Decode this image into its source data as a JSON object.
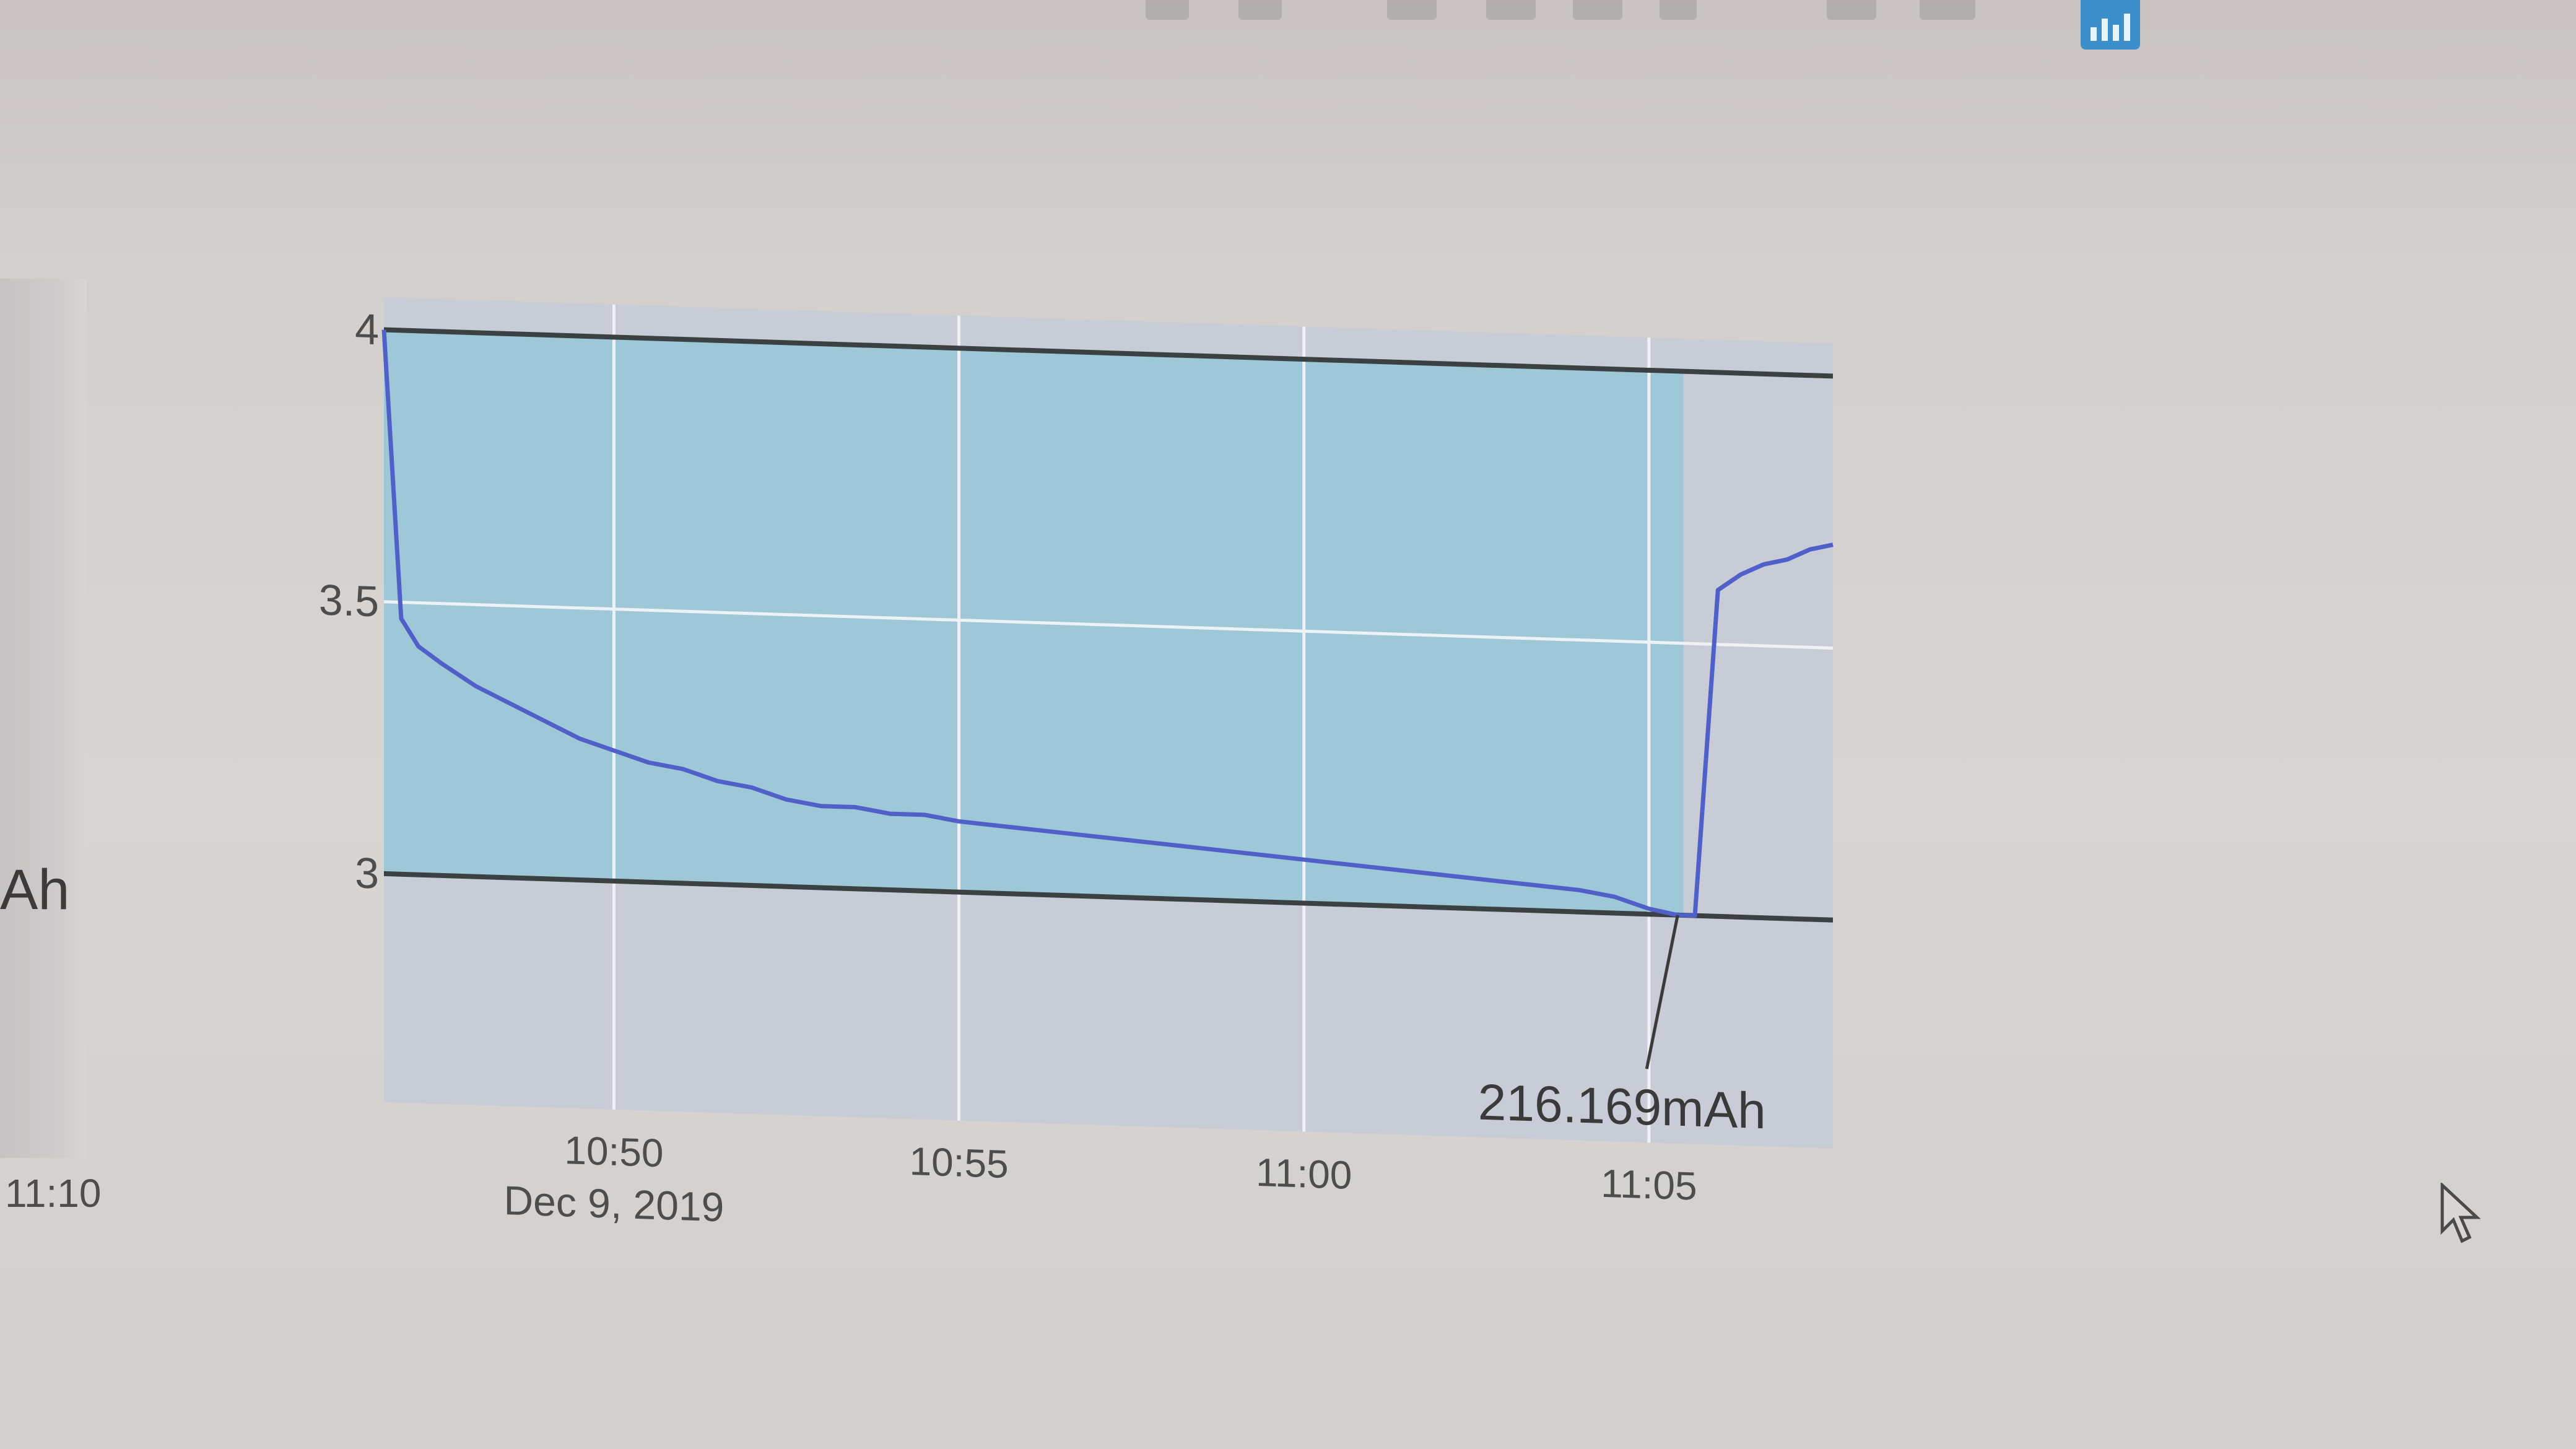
{
  "toolbar": {
    "icons": [
      "camera-icon",
      "save-icon",
      "zoom-icon",
      "home-icon",
      "lasso-icon",
      "autoscale-icon",
      "spikelines-icon",
      "bar-chart-icon"
    ],
    "active_icon": "bar-chart-icon",
    "active_color": "#3d8fc9"
  },
  "left_panel": {
    "unit_fragment": "Ah",
    "tick_label": "11:10"
  },
  "chart_data": {
    "type": "line",
    "x_axis": {
      "type": "time",
      "range": [
        "2019-12-09 10:46:40",
        "2019-12-09 11:07:40"
      ],
      "ticks": [
        {
          "x": "2019-12-09 10:50",
          "label": "10:50"
        },
        {
          "x": "2019-12-09 10:55",
          "label": "10:55"
        },
        {
          "x": "2019-12-09 11:00",
          "label": "11:00"
        },
        {
          "x": "2019-12-09 11:05",
          "label": "11:05"
        }
      ],
      "sub_label": "Dec 9, 2019"
    },
    "y_axis": {
      "range": [
        2.58,
        4.06
      ],
      "ticks": [
        {
          "y": 4,
          "label": "4"
        },
        {
          "y": 3.5,
          "label": "3.5"
        },
        {
          "y": 3,
          "label": "3"
        }
      ]
    },
    "grid": true,
    "threshold_lines": [
      4,
      3
    ],
    "shaded_region": {
      "x_start": "2019-12-09 10:46:40",
      "x_end": "2019-12-09 11:05:30",
      "y_start": 3,
      "y_end": 4,
      "color": "#9cc6d8"
    },
    "series": [
      {
        "color": "#5060c8",
        "x": [
          "2019-12-09 10:46:40",
          "2019-12-09 10:46:55",
          "2019-12-09 10:47:10",
          "2019-12-09 10:47:30",
          "2019-12-09 10:48:00",
          "2019-12-09 10:48:30",
          "2019-12-09 10:49:00",
          "2019-12-09 10:49:30",
          "2019-12-09 10:50:00",
          "2019-12-09 10:50:30",
          "2019-12-09 10:51:00",
          "2019-12-09 10:51:30",
          "2019-12-09 10:52:00",
          "2019-12-09 10:52:30",
          "2019-12-09 10:53:00",
          "2019-12-09 10:53:30",
          "2019-12-09 10:54:00",
          "2019-12-09 10:54:30",
          "2019-12-09 10:55:00",
          "2019-12-09 10:56:00",
          "2019-12-09 10:57:00",
          "2019-12-09 10:58:00",
          "2019-12-09 10:59:00",
          "2019-12-09 11:00:00",
          "2019-12-09 11:01:00",
          "2019-12-09 11:02:00",
          "2019-12-09 11:03:00",
          "2019-12-09 11:04:00",
          "2019-12-09 11:04:30",
          "2019-12-09 11:05:00",
          "2019-12-09 11:05:25",
          "2019-12-09 11:05:40",
          "2019-12-09 11:05:50",
          "2019-12-09 11:06:00",
          "2019-12-09 11:06:20",
          "2019-12-09 11:06:40",
          "2019-12-09 11:07:00",
          "2019-12-09 11:07:20",
          "2019-12-09 11:07:40"
        ],
        "y": [
          4.0,
          3.47,
          3.42,
          3.39,
          3.35,
          3.32,
          3.29,
          3.26,
          3.24,
          3.22,
          3.21,
          3.19,
          3.18,
          3.16,
          3.15,
          3.15,
          3.14,
          3.14,
          3.13,
          3.12,
          3.11,
          3.1,
          3.09,
          3.08,
          3.07,
          3.06,
          3.05,
          3.04,
          3.03,
          3.01,
          3.0,
          3.0,
          3.3,
          3.6,
          3.63,
          3.65,
          3.66,
          3.68,
          3.69
        ]
      }
    ],
    "annotations": [
      {
        "x": "2019-12-09 11:05:25",
        "y": 3.0,
        "text": "216.169mAh"
      }
    ]
  }
}
